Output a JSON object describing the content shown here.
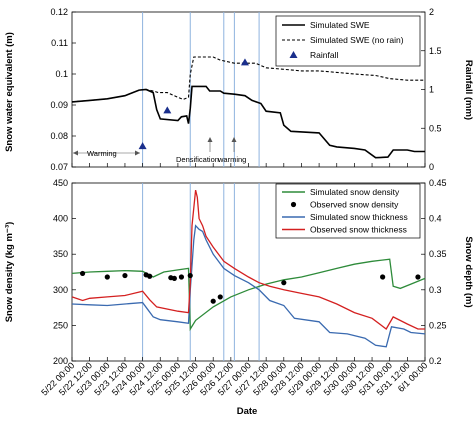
{
  "x_axis": {
    "label": "Date",
    "ticks": [
      "5/22 00:00",
      "5/22 12:00",
      "5/23 00:00",
      "5/23 12:00",
      "5/24 00:00",
      "5/24 12:00",
      "5/25 00:00",
      "5/25 12:00",
      "5/26 00:00",
      "5/26 12:00",
      "5/27 00:00",
      "5/27 12:00",
      "5/28 00:00",
      "5/28 12:00",
      "5/29 00:00",
      "5/29 12:00",
      "5/30 00:00",
      "5/30 12:00",
      "5/31 00:00",
      "5/31 12:00",
      "6/1 00:00"
    ],
    "range_days": [
      0,
      10
    ]
  },
  "vlines_days": [
    2.0,
    3.35,
    4.3,
    4.6,
    5.3
  ],
  "colors": {
    "swe": "#000000",
    "density_sim": "#2e8b3a",
    "density_obs": "#000000",
    "thickness_sim": "#3a6ab0",
    "thickness_obs": "#d42020",
    "rainfall": "#1a2f8c",
    "vline": "#8fb3de"
  },
  "chart_data": [
    {
      "type": "line",
      "ylabel": "Snow water equivalent (m)",
      "y2label": "Rainfall (mm)",
      "ylim": [
        0.07,
        0.12
      ],
      "yticks": [
        "0.07",
        "0.08",
        "0.09",
        "0.1",
        "0.11",
        "0.12"
      ],
      "y2lim": [
        0,
        2
      ],
      "y2ticks": [
        "0",
        "0.5",
        "1",
        "1.5",
        "2"
      ],
      "legend_position": "top-right",
      "series": [
        {
          "name": "Simulated SWE",
          "style": "solid",
          "points": [
            [
              0,
              0.091
            ],
            [
              0.5,
              0.0915
            ],
            [
              1.0,
              0.092
            ],
            [
              1.5,
              0.093
            ],
            [
              1.9,
              0.0948
            ],
            [
              2.1,
              0.095
            ],
            [
              2.3,
              0.094
            ],
            [
              2.4,
              0.0885
            ],
            [
              2.5,
              0.0855
            ],
            [
              3.0,
              0.085
            ],
            [
              3.1,
              0.0862
            ],
            [
              3.25,
              0.0865
            ],
            [
              3.3,
              0.084
            ],
            [
              3.35,
              0.089
            ],
            [
              3.4,
              0.096
            ],
            [
              3.8,
              0.096
            ],
            [
              3.9,
              0.0945
            ],
            [
              4.2,
              0.0945
            ],
            [
              4.3,
              0.0938
            ],
            [
              4.6,
              0.0935
            ],
            [
              4.9,
              0.093
            ],
            [
              5.1,
              0.0915
            ],
            [
              5.35,
              0.0905
            ],
            [
              5.5,
              0.088
            ],
            [
              5.9,
              0.0875
            ],
            [
              6.0,
              0.0835
            ],
            [
              6.2,
              0.0815
            ],
            [
              7.0,
              0.081
            ],
            [
              7.3,
              0.077
            ],
            [
              7.5,
              0.0765
            ],
            [
              8.0,
              0.076
            ],
            [
              8.3,
              0.0755
            ],
            [
              8.6,
              0.073
            ],
            [
              8.95,
              0.0732
            ],
            [
              9.1,
              0.0755
            ],
            [
              9.5,
              0.0755
            ],
            [
              9.7,
              0.075
            ],
            [
              10,
              0.075
            ]
          ]
        },
        {
          "name": "Simulated SWE (no rain)",
          "style": "dashed",
          "points": [
            [
              0,
              0.091
            ],
            [
              0.5,
              0.0915
            ],
            [
              1.0,
              0.092
            ],
            [
              1.5,
              0.093
            ],
            [
              1.9,
              0.0948
            ],
            [
              2.1,
              0.095
            ],
            [
              2.3,
              0.0945
            ],
            [
              2.45,
              0.094
            ],
            [
              2.7,
              0.094
            ],
            [
              3.0,
              0.0925
            ],
            [
              3.15,
              0.0918
            ],
            [
              3.3,
              0.0925
            ],
            [
              3.35,
              0.1
            ],
            [
              3.45,
              0.1055
            ],
            [
              4.0,
              0.1055
            ],
            [
              4.2,
              0.1045
            ],
            [
              4.6,
              0.1035
            ],
            [
              5.2,
              0.1035
            ],
            [
              5.5,
              0.102
            ],
            [
              6.0,
              0.1015
            ],
            [
              6.5,
              0.101
            ],
            [
              7.0,
              0.101
            ],
            [
              7.5,
              0.1005
            ],
            [
              8.0,
              0.1
            ],
            [
              8.6,
              0.0995
            ],
            [
              9.0,
              0.0985
            ],
            [
              9.5,
              0.098
            ],
            [
              10,
              0.098
            ]
          ]
        }
      ],
      "rainfall": {
        "name": "Rainfall",
        "points": [
          [
            2.0,
            0.27
          ],
          [
            2.7,
            0.73
          ],
          [
            4.9,
            1.35
          ]
        ]
      },
      "annotations": [
        "Warming",
        "Densification",
        "warming"
      ]
    },
    {
      "type": "line",
      "ylabel": "Snow density (kg m⁻³)",
      "y2label": "Snow depth (m)",
      "ylim": [
        200,
        450
      ],
      "yticks": [
        "200",
        "250",
        "300",
        "350",
        "400",
        "450"
      ],
      "y2lim": [
        0.2,
        0.45
      ],
      "y2ticks": [
        "0.2",
        "0.25",
        "0.3",
        "0.35",
        "0.4",
        "0.45"
      ],
      "legend_position": "top-right",
      "series": [
        {
          "name": "Simulated snow density",
          "axis": "left",
          "points": [
            [
              0,
              323
            ],
            [
              0.5,
              325
            ],
            [
              1.0,
              326
            ],
            [
              1.5,
              327
            ],
            [
              2.0,
              326
            ],
            [
              2.3,
              318
            ],
            [
              2.6,
              325
            ],
            [
              3.0,
              328
            ],
            [
              3.3,
              330
            ],
            [
              3.35,
              245
            ],
            [
              3.5,
              257
            ],
            [
              4.0,
              276
            ],
            [
              4.5,
              290
            ],
            [
              5.0,
              300
            ],
            [
              5.5,
              308
            ],
            [
              6.0,
              314
            ],
            [
              6.5,
              318
            ],
            [
              7.0,
              324
            ],
            [
              7.5,
              330
            ],
            [
              8.0,
              336
            ],
            [
              8.5,
              340
            ],
            [
              9.0,
              343
            ],
            [
              9.1,
              305
            ],
            [
              9.3,
              302
            ],
            [
              9.6,
              308
            ],
            [
              10,
              316
            ]
          ]
        },
        {
          "name": "Observed snow density",
          "axis": "left",
          "style": "markers",
          "points": [
            [
              0.3,
              323
            ],
            [
              1.0,
              318
            ],
            [
              1.5,
              320
            ],
            [
              2.1,
              321
            ],
            [
              2.2,
              319
            ],
            [
              2.8,
              317
            ],
            [
              2.9,
              316
            ],
            [
              3.1,
              318
            ],
            [
              3.35,
              320
            ],
            [
              4.0,
              284
            ],
            [
              4.2,
              290
            ],
            [
              6.0,
              310
            ],
            [
              8.8,
              318
            ],
            [
              9.8,
              318
            ]
          ]
        },
        {
          "name": "Simulated snow thickness",
          "axis": "right",
          "points": [
            [
              0,
              0.28
            ],
            [
              0.5,
              0.279
            ],
            [
              1.0,
              0.278
            ],
            [
              1.5,
              0.28
            ],
            [
              2.0,
              0.282
            ],
            [
              2.15,
              0.272
            ],
            [
              2.3,
              0.262
            ],
            [
              2.5,
              0.258
            ],
            [
              3.0,
              0.255
            ],
            [
              3.3,
              0.253
            ],
            [
              3.35,
              0.3
            ],
            [
              3.45,
              0.37
            ],
            [
              3.5,
              0.39
            ],
            [
              3.6,
              0.385
            ],
            [
              3.7,
              0.382
            ],
            [
              3.8,
              0.37
            ],
            [
              4.0,
              0.35
            ],
            [
              4.3,
              0.33
            ],
            [
              4.6,
              0.32
            ],
            [
              5.0,
              0.31
            ],
            [
              5.3,
              0.3
            ],
            [
              5.6,
              0.285
            ],
            [
              6.0,
              0.278
            ],
            [
              6.3,
              0.26
            ],
            [
              7.0,
              0.255
            ],
            [
              7.3,
              0.24
            ],
            [
              7.8,
              0.238
            ],
            [
              8.3,
              0.232
            ],
            [
              8.6,
              0.222
            ],
            [
              8.9,
              0.22
            ],
            [
              9.05,
              0.248
            ],
            [
              9.4,
              0.245
            ],
            [
              9.6,
              0.24
            ],
            [
              10,
              0.238
            ]
          ]
        },
        {
          "name": "Observed snow thickness",
          "axis": "right",
          "points": [
            [
              0,
              0.29
            ],
            [
              0.3,
              0.285
            ],
            [
              0.5,
              0.288
            ],
            [
              1.0,
              0.29
            ],
            [
              1.5,
              0.292
            ],
            [
              2.0,
              0.298
            ],
            [
              2.2,
              0.286
            ],
            [
              2.4,
              0.276
            ],
            [
              3.0,
              0.27
            ],
            [
              3.3,
              0.268
            ],
            [
              3.35,
              0.31
            ],
            [
              3.4,
              0.39
            ],
            [
              3.5,
              0.44
            ],
            [
              3.55,
              0.43
            ],
            [
              3.6,
              0.4
            ],
            [
              3.7,
              0.39
            ],
            [
              3.8,
              0.375
            ],
            [
              4.0,
              0.36
            ],
            [
              4.3,
              0.34
            ],
            [
              4.6,
              0.33
            ],
            [
              5.0,
              0.318
            ],
            [
              5.3,
              0.31
            ],
            [
              5.6,
              0.305
            ],
            [
              6.0,
              0.3
            ],
            [
              6.5,
              0.295
            ],
            [
              7.0,
              0.29
            ],
            [
              7.5,
              0.28
            ],
            [
              8.0,
              0.268
            ],
            [
              8.5,
              0.26
            ],
            [
              8.9,
              0.245
            ],
            [
              9.1,
              0.262
            ],
            [
              9.5,
              0.252
            ],
            [
              9.8,
              0.245
            ],
            [
              10,
              0.245
            ]
          ]
        }
      ]
    }
  ]
}
